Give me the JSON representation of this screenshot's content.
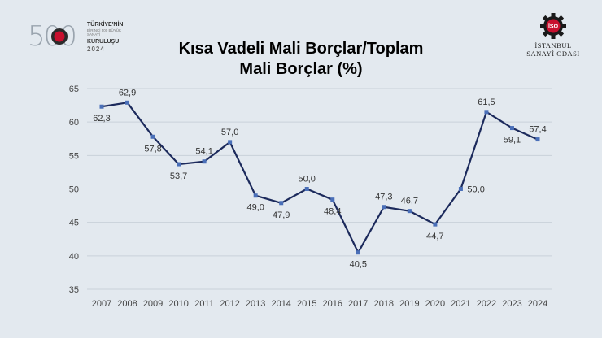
{
  "header": {
    "logo_left": {
      "number": "500",
      "line1": "TÜRKİYE'NİN",
      "line2": "BİRİNCİ 500 BÜYÜK SANAYİ",
      "line3": "KURULUŞU",
      "line4": "2024"
    },
    "logo_right": {
      "badge": "İSO",
      "line1": "İSTANBUL",
      "line2": "SANAYİ ODASI"
    },
    "title_line1": "Kısa Vadeli Mali Borçlar/Toplam",
    "title_line2": "Mali Borçlar (%)"
  },
  "colors": {
    "line": "#1c2a5c",
    "marker": "#4a6fb8",
    "grid": "#c9d1da",
    "badge_red": "#c8102e",
    "background": "#e3e9ef"
  },
  "chart_data": {
    "type": "line",
    "title": "Kısa Vadeli Mali Borçlar/Toplam Mali Borçlar (%)",
    "xlabel": "",
    "ylabel": "",
    "x": [
      "2007",
      "2008",
      "2009",
      "2010",
      "2011",
      "2012",
      "2013",
      "2014",
      "2015",
      "2016",
      "2017",
      "2018",
      "2019",
      "2020",
      "2021",
      "2022",
      "2023",
      "2024"
    ],
    "series": [
      {
        "values": [
          62.3,
          62.9,
          57.8,
          53.7,
          54.1,
          57.0,
          49.0,
          47.9,
          50.0,
          48.4,
          40.5,
          47.3,
          46.7,
          44.7,
          50.0,
          61.5,
          59.1,
          57.4
        ],
        "labels": [
          "62,3",
          "62,9",
          "57,8",
          "53,7",
          "54,1",
          "57,0",
          "49,0",
          "47,9",
          "50,0",
          "48,4",
          "40,5",
          "47,3",
          "46,7",
          "44,7",
          "50,0",
          "61,5",
          "59,1",
          "57,4"
        ],
        "label_position": [
          "below",
          "above",
          "below",
          "below",
          "above",
          "above",
          "below",
          "below",
          "above",
          "below",
          "below",
          "above",
          "above",
          "below",
          "right",
          "above",
          "below",
          "above"
        ]
      }
    ],
    "ylim": [
      35,
      65
    ],
    "yticks": [
      35,
      40,
      45,
      50,
      55,
      60,
      65
    ],
    "grid": true,
    "legend": "none"
  }
}
